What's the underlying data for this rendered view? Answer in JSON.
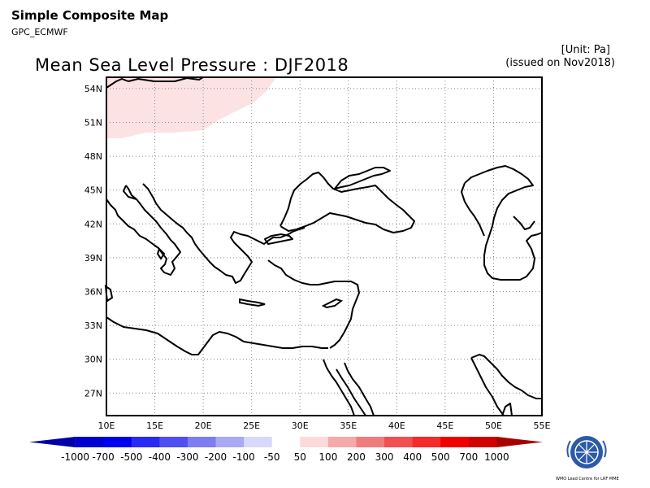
{
  "header": {
    "app_title": "Simple Composite Map",
    "app_subtitle": "GPC_ECMWF",
    "map_title": "Mean Sea Level Pressure : DJF2018",
    "unit": "[Unit: Pa]",
    "issued": "(issued on Nov2018)"
  },
  "map": {
    "lat_labels": [
      "54N",
      "51N",
      "48N",
      "45N",
      "42N",
      "39N",
      "36N",
      "33N",
      "30N",
      "27N"
    ],
    "lat_values": [
      54,
      51,
      48,
      45,
      42,
      39,
      36,
      33,
      30,
      27
    ],
    "lon_labels": [
      "10E",
      "15E",
      "20E",
      "25E",
      "30E",
      "35E",
      "40E",
      "45E",
      "50E",
      "55E"
    ],
    "lon_values": [
      10,
      15,
      20,
      25,
      30,
      35,
      40,
      45,
      50,
      55
    ],
    "lon_range": [
      10,
      55
    ],
    "lat_range": [
      25,
      55
    ],
    "grid": true,
    "anomaly_shading": {
      "region": "northwest",
      "range": "50 to 100",
      "color": "#fde2e4"
    }
  },
  "colorbar": {
    "labels": [
      "-1000",
      "-700",
      "-500",
      "-400",
      "-300",
      "-200",
      "-100",
      "-50",
      "50",
      "100",
      "200",
      "300",
      "400",
      "500",
      "700",
      "1000"
    ],
    "colors": [
      "#0000a8",
      "#0000d0",
      "#0000f0",
      "#2a2af5",
      "#5050f2",
      "#7d7df0",
      "#a9a9f3",
      "#d8d8fa",
      "#ffffff",
      "#fcdada",
      "#f5a9a9",
      "#f07d7d",
      "#f05050",
      "#f52a2a",
      "#f00000",
      "#d00000",
      "#a80000"
    ]
  },
  "logo": {
    "text": "WMO Lead Centre for LRF MME"
  }
}
